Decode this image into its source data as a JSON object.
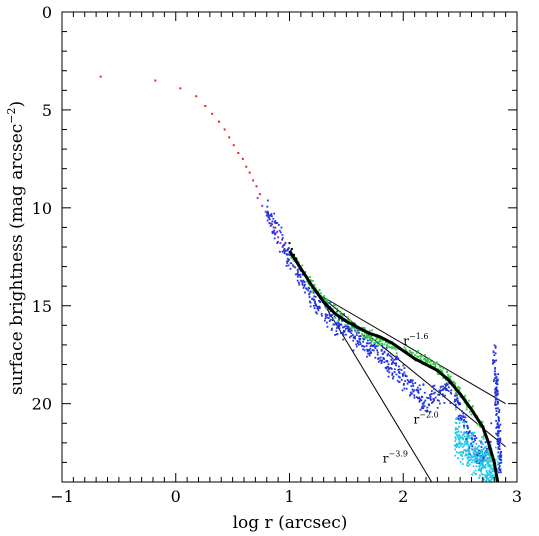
{
  "chart_data": {
    "type": "scatter",
    "xlabel": "log r (arcsec)",
    "ylabel": "surface brightness (mag arcsec",
    "ylabel_sup": "−2",
    "ylabel_close": ")",
    "xlim": [
      -1,
      3
    ],
    "ylim": [
      24,
      0
    ],
    "y_inverted": true,
    "x_ticks": [
      {
        "value": -1,
        "label": "−1"
      },
      {
        "value": 0,
        "label": "0"
      },
      {
        "value": 1,
        "label": "1"
      },
      {
        "value": 2,
        "label": "2"
      },
      {
        "value": 3,
        "label": "3"
      }
    ],
    "y_ticks": [
      {
        "value": 0,
        "label": "0"
      },
      {
        "value": 5,
        "label": "5"
      },
      {
        "value": 10,
        "label": "10"
      },
      {
        "value": 15,
        "label": "15"
      },
      {
        "value": 20,
        "label": "20"
      }
    ],
    "grid": false,
    "colors": {
      "red": "#e8251f",
      "magenta": "#b02fd8",
      "blue": "#2233dd",
      "cyan": "#22c8e8",
      "green": "#2ecc40",
      "black": "#000000",
      "axis": "#000000"
    },
    "series": [
      {
        "color": "red",
        "kind": "points",
        "x": [
          -0.66,
          -0.18,
          0.04,
          0.18,
          0.26,
          0.32,
          0.38,
          0.43,
          0.47,
          0.51,
          0.55,
          0.59,
          0.62,
          0.65,
          0.68,
          0.71,
          0.74
        ],
        "y": [
          3.3,
          3.5,
          3.9,
          4.3,
          4.8,
          5.2,
          5.6,
          6.0,
          6.4,
          6.8,
          7.2,
          7.5,
          7.9,
          8.2,
          8.6,
          8.9,
          9.3
        ]
      },
      {
        "color": "magenta",
        "kind": "points",
        "x": [
          0.72,
          0.76,
          0.79,
          0.82,
          0.84,
          0.86,
          0.88,
          0.9,
          0.92,
          0.94,
          0.96,
          0.98
        ],
        "y": [
          9.5,
          9.9,
          10.2,
          10.5,
          10.8,
          11.0,
          11.3,
          11.5,
          11.8,
          12.0,
          12.2,
          12.4
        ]
      },
      {
        "color": "blue",
        "kind": "band",
        "x": [
          0.8,
          1.0,
          1.2,
          1.4,
          1.6,
          1.8,
          2.0,
          2.1,
          2.2,
          2.3,
          2.4,
          2.5,
          2.55,
          2.6,
          2.65,
          2.7,
          2.75,
          2.78
        ],
        "y": [
          10.2,
          12.5,
          14.6,
          15.8,
          16.7,
          17.5,
          18.6,
          19.2,
          19.9,
          19.5,
          19.0,
          20.3,
          21.3,
          22.0,
          22.5,
          22.8,
          22.4,
          21.5
        ],
        "spread": 0.6
      },
      {
        "color": "blue",
        "kind": "spike",
        "x": [
          2.8,
          2.81,
          2.82,
          2.82,
          2.83,
          2.83,
          2.84,
          2.84,
          2.85,
          2.85
        ],
        "y": [
          17.6,
          18.3,
          19.0,
          19.8,
          20.5,
          21.0,
          21.6,
          22.0,
          22.4,
          23.0
        ]
      },
      {
        "color": "cyan",
        "kind": "band",
        "x": [
          2.45,
          2.5,
          2.55,
          2.6,
          2.65,
          2.7,
          2.75,
          2.8,
          2.84
        ],
        "y": [
          21.5,
          21.8,
          22.2,
          22.5,
          22.8,
          23.0,
          23.3,
          23.5,
          23.8
        ],
        "spread": 1.0
      },
      {
        "color": "green",
        "kind": "band",
        "x": [
          1.0,
          1.2,
          1.4,
          1.6,
          1.8,
          2.0,
          2.1,
          2.2,
          2.3,
          2.4,
          2.5,
          2.6,
          2.7,
          2.75,
          2.8,
          2.84
        ],
        "y": [
          12.2,
          14.0,
          15.3,
          16.2,
          16.8,
          17.3,
          17.5,
          17.8,
          18.2,
          18.7,
          19.5,
          20.3,
          21.3,
          22.2,
          23.2,
          24.0
        ],
        "spread": 0.25
      },
      {
        "color": "black",
        "kind": "curve",
        "x": [
          1.0,
          1.1,
          1.2,
          1.3,
          1.4,
          1.5,
          1.6,
          1.7,
          1.8,
          1.9,
          2.0,
          2.1,
          2.2,
          2.3,
          2.4,
          2.5,
          2.6,
          2.7,
          2.75,
          2.8,
          2.83
        ],
        "y": [
          12.2,
          13.1,
          14.0,
          14.8,
          15.4,
          15.8,
          16.1,
          16.4,
          16.6,
          16.9,
          17.3,
          17.7,
          18.0,
          18.3,
          18.8,
          19.5,
          20.3,
          21.2,
          22.0,
          23.0,
          24.0
        ]
      },
      {
        "color": "black",
        "kind": "points",
        "x": [
          1.0,
          1.02,
          1.04,
          1.06,
          1.08,
          1.1
        ],
        "y": [
          11.8,
          12.1,
          12.4,
          12.6,
          12.9,
          13.2
        ]
      }
    ],
    "fit_lines": [
      {
        "label": "r",
        "exponent": "−1.6",
        "x": [
          1.25,
          2.9
        ],
        "y": [
          14.4,
          20.0
        ]
      },
      {
        "label": "r",
        "exponent": "−2.0",
        "x": [
          1.25,
          2.9
        ],
        "y": [
          14.4,
          22.2
        ]
      },
      {
        "label": "r",
        "exponent": "−3.9",
        "x": [
          1.25,
          2.25
        ],
        "y": [
          14.4,
          24.0
        ]
      }
    ],
    "annotations": [
      {
        "text": "r",
        "sup": "−1.6",
        "x": 2.0,
        "y": 17.0
      },
      {
        "text": "r",
        "sup": "−2.0",
        "x": 2.09,
        "y": 21.0
      },
      {
        "text": "r",
        "sup": "−3.9",
        "x": 1.82,
        "y": 23.0
      }
    ]
  }
}
